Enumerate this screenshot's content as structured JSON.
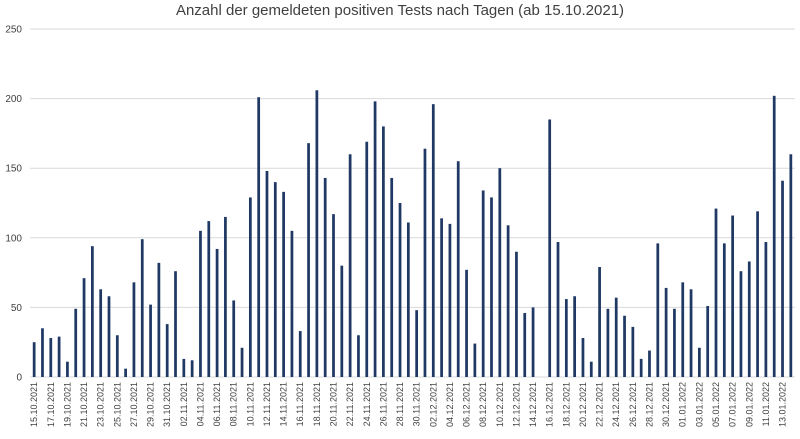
{
  "chart_data": {
    "type": "bar",
    "title": "Anzahl der gemeldeten positiven Tests nach Tagen (ab 15.10.2021)",
    "xlabel": "",
    "ylabel": "",
    "ylim": [
      0,
      250
    ],
    "yticks": [
      0,
      50,
      100,
      150,
      200,
      250
    ],
    "grid": true,
    "bar_color": "#1f3864",
    "categories": [
      "15.10.2021",
      "16.10.2021",
      "17.10.2021",
      "18.10.2021",
      "19.10.2021",
      "20.10.2021",
      "21.10.2021",
      "22.10.2021",
      "23.10.2021",
      "24.10.2021",
      "25.10.2021",
      "26.10.2021",
      "27.10.2021",
      "28.10.2021",
      "29.10.2021",
      "30.10.2021",
      "31.10.2021",
      "01.11.2021",
      "02.11.2021",
      "03.11.2021",
      "04.11.2021",
      "05.11.2021",
      "06.11.2021",
      "07.11.2021",
      "08.11.2021",
      "09.11.2021",
      "10.11.2021",
      "11.11.2021",
      "12.11.2021",
      "13.11.2021",
      "14.11.2021",
      "15.11.2021",
      "16.11.2021",
      "17.11.2021",
      "18.11.2021",
      "19.11.2021",
      "20.11.2021",
      "21.11.2021",
      "22.11.2021",
      "23.11.2021",
      "24.11.2021",
      "25.11.2021",
      "26.11.2021",
      "27.11.2021",
      "28.11.2021",
      "29.11.2021",
      "30.11.2021",
      "01.12.2021",
      "02.12.2021",
      "03.12.2021",
      "04.12.2021",
      "05.12.2021",
      "06.12.2021",
      "07.12.2021",
      "08.12.2021",
      "09.12.2021",
      "10.12.2021",
      "11.12.2021",
      "12.12.2021",
      "13.12.2021",
      "14.12.2021",
      "15.12.2021",
      "16.12.2021",
      "17.12.2021",
      "18.12.2021",
      "19.12.2021",
      "20.12.2021",
      "21.12.2021",
      "22.12.2021",
      "23.12.2021",
      "24.12.2021",
      "25.12.2021",
      "26.12.2021",
      "27.12.2021",
      "28.12.2021",
      "29.12.2021",
      "30.12.2021",
      "31.12.2021",
      "01.01.2022",
      "02.01.2022",
      "03.01.2022",
      "04.01.2022",
      "05.01.2022",
      "06.01.2022",
      "07.01.2022",
      "08.01.2022",
      "09.01.2022",
      "10.01.2022",
      "11.01.2022",
      "12.01.2022",
      "13.01.2022",
      "14.01.2022"
    ],
    "values": [
      25,
      35,
      28,
      29,
      11,
      49,
      71,
      94,
      63,
      58,
      30,
      6,
      68,
      99,
      52,
      82,
      38,
      76,
      13,
      12,
      105,
      112,
      92,
      115,
      55,
      21,
      129,
      201,
      148,
      140,
      133,
      105,
      33,
      168,
      206,
      143,
      117,
      80,
      160,
      30,
      169,
      198,
      180,
      143,
      125,
      111,
      48,
      164,
      196,
      114,
      110,
      155,
      77,
      24,
      134,
      129,
      150,
      109,
      90,
      46,
      50,
      0,
      185,
      97,
      56,
      58,
      28,
      11,
      79,
      49,
      57,
      44,
      36,
      13,
      19,
      96,
      64,
      49,
      68,
      63,
      21,
      51,
      121,
      96,
      116,
      76,
      83,
      119,
      97,
      202,
      141,
      160
    ]
  }
}
